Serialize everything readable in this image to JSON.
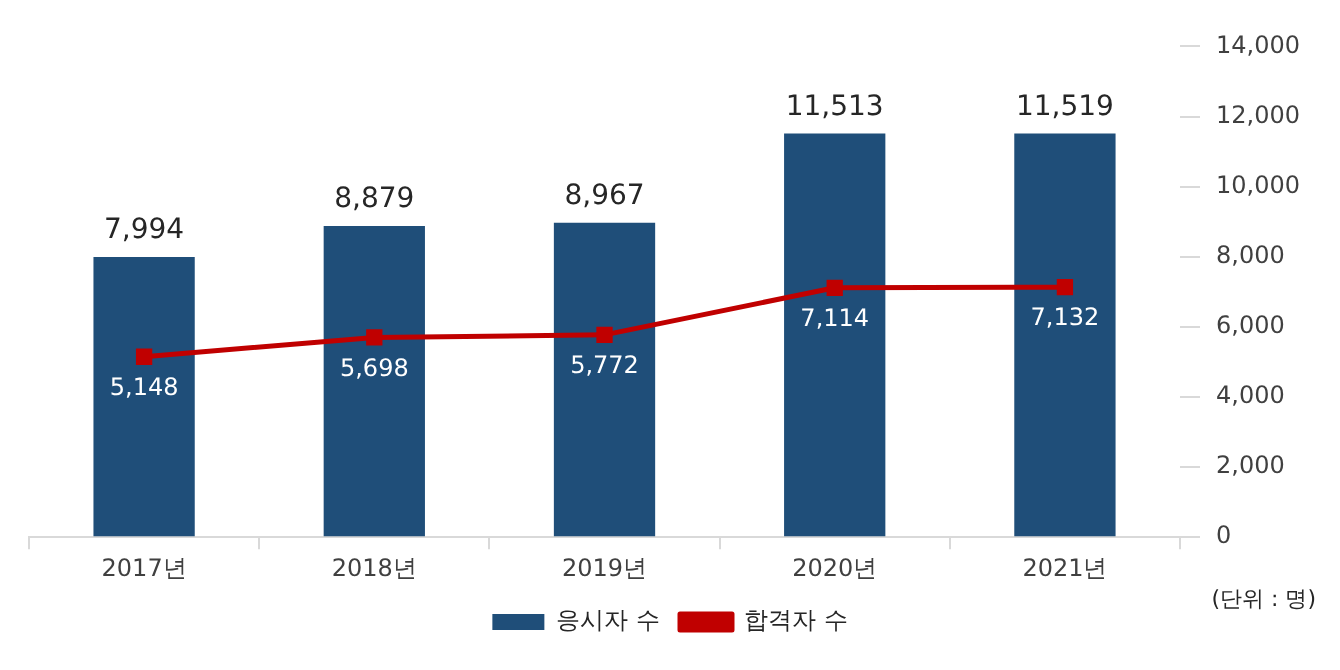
{
  "chart_data": {
    "type": "bar",
    "categories": [
      "2017년",
      "2018년",
      "2019년",
      "2020년",
      "2021년"
    ],
    "series": [
      {
        "name": "응시자 수",
        "color": "#1f4e79",
        "values": [
          7994,
          8879,
          8967,
          11513,
          11519
        ],
        "value_labels": [
          "7,994",
          "8,879",
          "8,967",
          "11,513",
          "11,519"
        ]
      },
      {
        "name": "합격자 수",
        "type": "line",
        "color": "#c00000",
        "values": [
          5148,
          5698,
          5772,
          7114,
          7132
        ],
        "value_labels": [
          "5,148",
          "5,698",
          "5,772",
          "7,114",
          "7,132"
        ]
      }
    ],
    "ylim": [
      0,
      14000
    ],
    "yticks": [
      0,
      {
        "value": 2000,
        "label": "2,000"
      },
      {
        "value": 4000,
        "label": "4,000"
      },
      {
        "value": 6000,
        "label": "6,000"
      },
      {
        "value": 8000,
        "label": "8,000"
      },
      {
        "value": 10000,
        "label": "10,000"
      },
      {
        "value": 12000,
        "label": "12,000"
      },
      {
        "value": 14000,
        "label": "14,000"
      }
    ],
    "grid": false,
    "legend": "bottom",
    "marker": "square",
    "annotations": [
      "(단위 : 명)"
    ]
  }
}
